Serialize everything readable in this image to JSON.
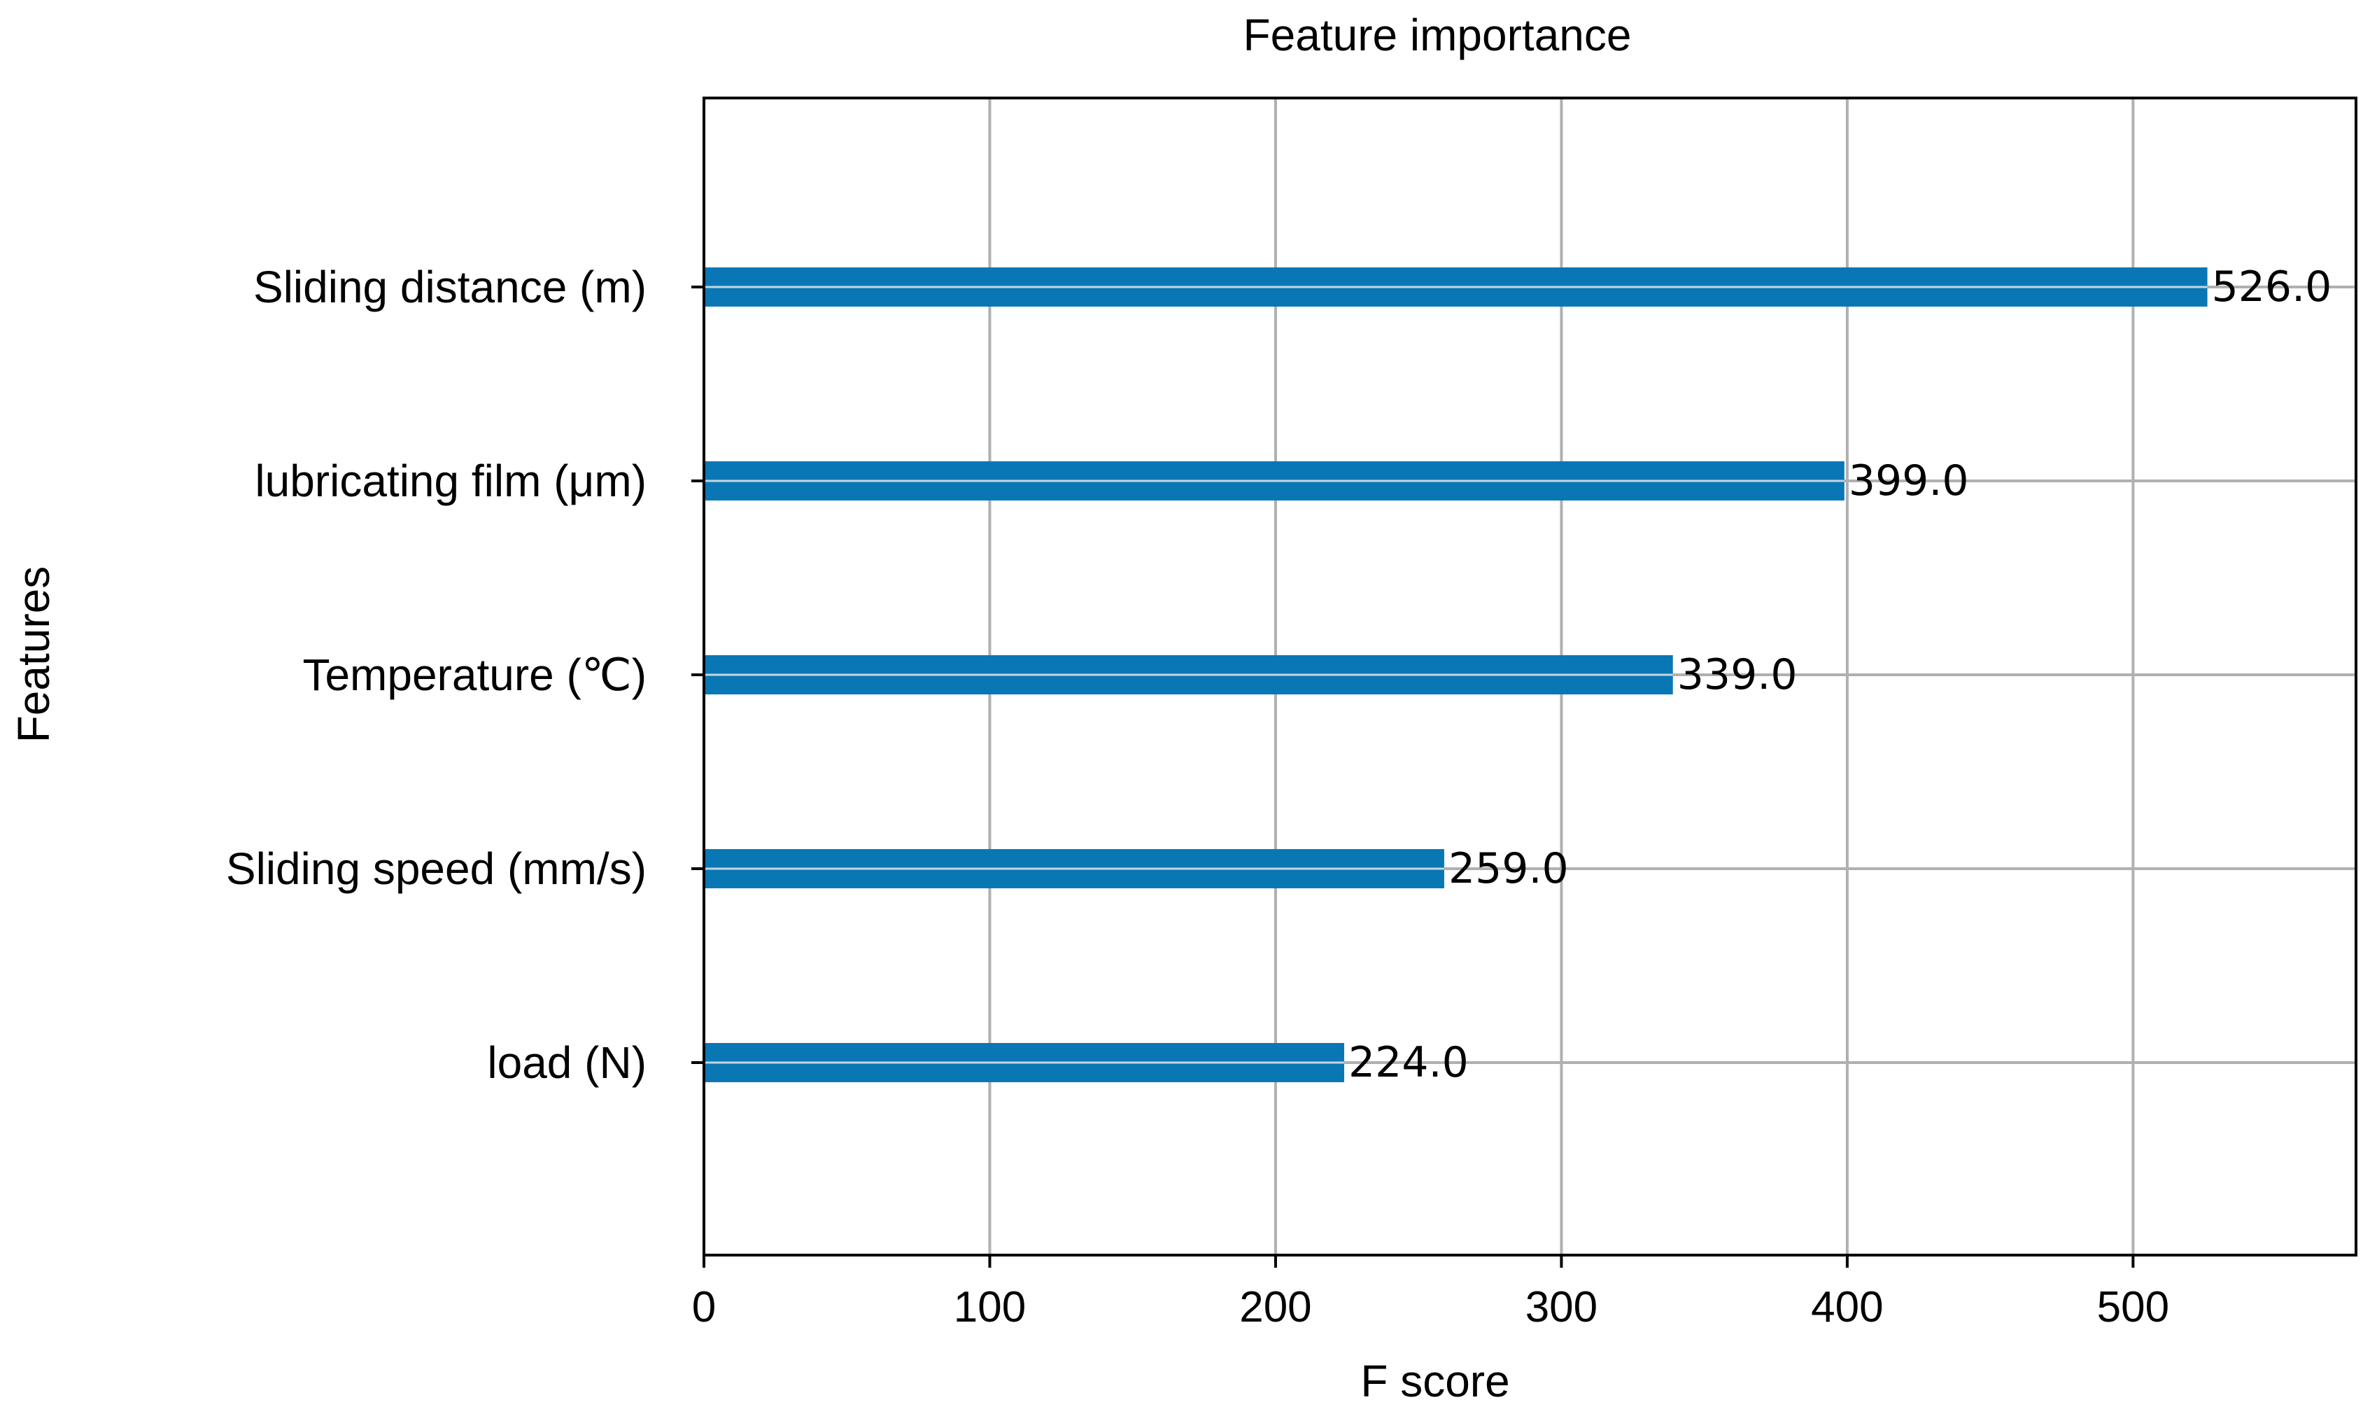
{
  "chart_data": {
    "type": "bar",
    "orientation": "horizontal",
    "title": "Feature importance",
    "xlabel": "F score",
    "ylabel": "Features",
    "categories": [
      "Sliding distance (m)",
      "lubricating film (μm)",
      "Temperature (℃)",
      "Sliding speed (mm/s)",
      "load (N)"
    ],
    "values": [
      526.0,
      399.0,
      339.0,
      259.0,
      224.0
    ],
    "data_labels": [
      "526.0",
      "399.0",
      "339.0",
      "259.0",
      "224.0"
    ],
    "xlim": [
      0,
      578
    ],
    "xticks": [
      0,
      100,
      200,
      300,
      400,
      500
    ],
    "xtick_labels": [
      "0",
      "100",
      "200",
      "300",
      "400",
      "500"
    ],
    "grid": true,
    "legend": "none",
    "colors": {
      "bar": "#0a77b5",
      "grid": "#b0b0b0",
      "axis": "#000000",
      "text": "#000000"
    }
  }
}
